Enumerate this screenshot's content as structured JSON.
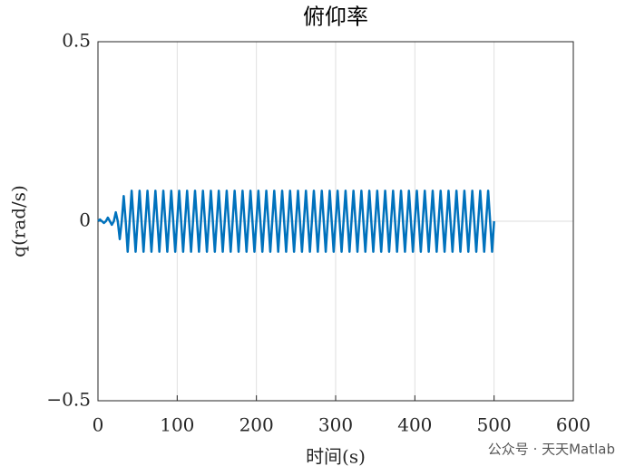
{
  "chart_data": {
    "type": "line",
    "title": "俯仰率",
    "xlabel": "时间(s)",
    "ylabel": "q(rad/s)",
    "watermark": "公众号 · 天天Matlab",
    "color": "#0072BD",
    "grid": true,
    "xlim": [
      0,
      600
    ],
    "xticks": [
      0,
      100,
      200,
      300,
      400,
      500,
      600
    ],
    "ylim": [
      -0.5,
      0.5
    ],
    "yticks": [
      {
        "value": -0.5,
        "label": "−0.5"
      },
      0,
      0.5
    ],
    "x": [
      0,
      2.5,
      5,
      7.5,
      10,
      12.5,
      15,
      17.5,
      20,
      22.5,
      25,
      27.5,
      30,
      32.5,
      35,
      37.5,
      40,
      42.5,
      45,
      47.5,
      50,
      52.5,
      55,
      57.5,
      60,
      62.5,
      65,
      67.5,
      70,
      72.5,
      75,
      77.5,
      80,
      82.5,
      85,
      87.5,
      90,
      92.5,
      95,
      97.5,
      100,
      102.5,
      105,
      107.5,
      110,
      112.5,
      115,
      117.5,
      120,
      122.5,
      125,
      127.5,
      130,
      132.5,
      135,
      137.5,
      140,
      142.5,
      145,
      147.5,
      150,
      152.5,
      155,
      157.5,
      160,
      162.5,
      165,
      167.5,
      170,
      172.5,
      175,
      177.5,
      180,
      182.5,
      185,
      187.5,
      190,
      192.5,
      195,
      197.5,
      200,
      202.5,
      205,
      207.5,
      210,
      212.5,
      215,
      217.5,
      220,
      222.5,
      225,
      227.5,
      230,
      232.5,
      235,
      237.5,
      240,
      242.5,
      245,
      247.5,
      250,
      252.5,
      255,
      257.5,
      260,
      262.5,
      265,
      267.5,
      270,
      272.5,
      275,
      277.5,
      280,
      282.5,
      285,
      287.5,
      290,
      292.5,
      295,
      297.5,
      300,
      302.5,
      305,
      307.5,
      310,
      312.5,
      315,
      317.5,
      320,
      322.5,
      325,
      327.5,
      330,
      332.5,
      335,
      337.5,
      340,
      342.5,
      345,
      347.5,
      350,
      352.5,
      355,
      357.5,
      360,
      362.5,
      365,
      367.5,
      370,
      372.5,
      375,
      377.5,
      380,
      382.5,
      385,
      387.5,
      390,
      392.5,
      395,
      397.5,
      400,
      402.5,
      405,
      407.5,
      410,
      412.5,
      415,
      417.5,
      420,
      422.5,
      425,
      427.5,
      430,
      432.5,
      435,
      437.5,
      440,
      442.5,
      445,
      447.5,
      450,
      452.5,
      455,
      457.5,
      460,
      462.5,
      465,
      467.5,
      470,
      472.5,
      475,
      477.5,
      480,
      482.5,
      485,
      487.5,
      490,
      492.5,
      495,
      497.5,
      500
    ],
    "values": [
      0,
      0.005,
      0,
      -0.005,
      0,
      0.01,
      0,
      -0.01,
      0,
      0.025,
      0,
      -0.05,
      0,
      0.07,
      0,
      -0.085,
      0,
      0.085,
      0,
      -0.085,
      0,
      0.085,
      0,
      -0.085,
      0,
      0.085,
      0,
      -0.085,
      0,
      0.085,
      0,
      -0.085,
      0,
      0.085,
      0,
      -0.085,
      0,
      0.085,
      0,
      -0.085,
      0,
      0.085,
      0,
      -0.085,
      0,
      0.085,
      0,
      -0.085,
      0,
      0.085,
      0,
      -0.085,
      0,
      0.085,
      0,
      -0.085,
      0,
      0.085,
      0,
      -0.085,
      0,
      0.085,
      0,
      -0.085,
      0,
      0.085,
      0,
      -0.085,
      0,
      0.085,
      0,
      -0.085,
      0,
      0.085,
      0,
      -0.085,
      0,
      0.085,
      0,
      -0.085,
      0,
      0.085,
      0,
      -0.085,
      0,
      0.085,
      0,
      -0.085,
      0,
      0.085,
      0,
      -0.085,
      0,
      0.085,
      0,
      -0.085,
      0,
      0.085,
      0,
      -0.085,
      0,
      0.085,
      0,
      -0.085,
      0,
      0.085,
      0,
      -0.085,
      0,
      0.085,
      0,
      -0.085,
      0,
      0.085,
      0,
      -0.085,
      0,
      0.085,
      0,
      -0.085,
      0,
      0.085,
      0,
      -0.085,
      0,
      0.085,
      0,
      -0.085,
      0,
      0.085,
      0,
      -0.085,
      0,
      0.085,
      0,
      -0.085,
      0,
      0.085,
      0,
      -0.085,
      0,
      0.085,
      0,
      -0.085,
      0,
      0.085,
      0,
      -0.085,
      0,
      0.085,
      0,
      -0.085,
      0,
      0.085,
      0,
      -0.085,
      0,
      0.085,
      0,
      -0.085,
      0,
      0.085,
      0,
      -0.085,
      0,
      0.085,
      0,
      -0.085,
      0,
      0.085,
      0,
      -0.085,
      0,
      0.085,
      0,
      -0.085,
      0,
      0.085,
      0,
      -0.085,
      0,
      0.085,
      0,
      -0.085,
      0,
      0.085,
      0,
      -0.085,
      0,
      0.085,
      0,
      -0.085,
      0,
      0.085,
      0,
      -0.085,
      0,
      0.085,
      0,
      -0.085,
      0
    ]
  }
}
